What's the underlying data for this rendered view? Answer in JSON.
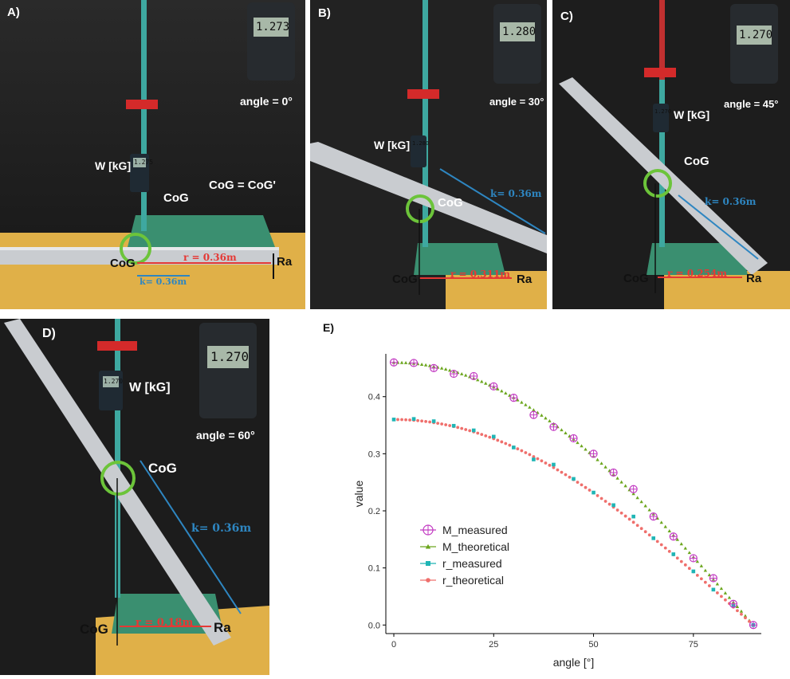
{
  "panels": {
    "a": {
      "label": "A)",
      "angle_text": "angle = 0°",
      "w_label": "W [kG]",
      "cog_label": "CoG",
      "cog_base_label": "CoG",
      "cog_eq": "CoG = CoG'",
      "r_label": "r = 0.36m",
      "k_label": "k= 0.36m",
      "ra_label": "Ra",
      "scale_reading": "1.273",
      "hook_reading": "1.275"
    },
    "b": {
      "label": "B)",
      "angle_text": "angle = 30°",
      "w_label": "W [kG]",
      "cog_label": "CoG",
      "cog_base_label": "CoG",
      "r_label": "r = 0.311m",
      "k_label": "k= 0.36m",
      "ra_label": "Ra",
      "scale_reading": "1.280",
      "hook_reading": "1.280"
    },
    "c": {
      "label": "C)",
      "angle_text": "angle = 45°",
      "w_label": "W [kG]",
      "cog_label": "CoG",
      "cog_base_label": "CoG",
      "r_label": "r = 0.254m",
      "k_label": "k= 0.36m",
      "ra_label": "Ra",
      "scale_reading": "1.270",
      "hook_reading": "1.270"
    },
    "d": {
      "label": "D)",
      "angle_text": "angle = 60°",
      "w_label": "W [kG]",
      "cog_label": "CoG",
      "cog_base_label": "CoG",
      "r_label": "r = 0.18m",
      "k_label": "k= 0.36m",
      "ra_label": "Ra",
      "scale_reading": "1.270",
      "hook_reading": "1.270"
    }
  },
  "chart_data": {
    "panel_label": "E)",
    "type": "scatter",
    "xlabel": "angle [°]",
    "ylabel": "value",
    "xlim": [
      -2,
      92
    ],
    "ylim": [
      -0.015,
      0.475
    ],
    "xticks": [
      0,
      25,
      50,
      75
    ],
    "yticks": [
      0.0,
      0.1,
      0.2,
      0.3,
      0.4
    ],
    "ytick_labels": [
      "0.0",
      "0.1",
      "0.2",
      "0.3",
      "0.4"
    ],
    "grid": false,
    "legend_position": "bottom-left",
    "series": [
      {
        "name": "M_measured",
        "marker": "circle-plus",
        "color": "#c23ac2",
        "x": [
          0,
          5,
          10,
          15,
          20,
          25,
          30,
          35,
          40,
          45,
          50,
          55,
          60,
          65,
          70,
          75,
          80,
          85,
          90
        ],
        "y": [
          0.46,
          0.459,
          0.45,
          0.44,
          0.436,
          0.418,
          0.398,
          0.368,
          0.347,
          0.327,
          0.3,
          0.267,
          0.238,
          0.19,
          0.155,
          0.117,
          0.082,
          0.037,
          0.0
        ]
      },
      {
        "name": "M_theoretical",
        "marker": "triangle",
        "color": "#6ca61e",
        "x": [
          0,
          1,
          2,
          3,
          4,
          5,
          6,
          7,
          8,
          9,
          10,
          11,
          12,
          13,
          14,
          15,
          16,
          17,
          18,
          19,
          20,
          21,
          22,
          23,
          24,
          25,
          26,
          27,
          28,
          29,
          30,
          31,
          32,
          33,
          34,
          35,
          36,
          37,
          38,
          39,
          40,
          41,
          42,
          43,
          44,
          45,
          46,
          47,
          48,
          49,
          50,
          51,
          52,
          53,
          54,
          55,
          56,
          57,
          58,
          59,
          60,
          61,
          62,
          63,
          64,
          65,
          66,
          67,
          68,
          69,
          70,
          71,
          72,
          73,
          74,
          75,
          76,
          77,
          78,
          79,
          80,
          81,
          82,
          83,
          84,
          85,
          86,
          87,
          88,
          89,
          90
        ],
        "y": [
          0.46,
          0.4599,
          0.4597,
          0.4594,
          0.4589,
          0.4582,
          0.4575,
          0.4566,
          0.4555,
          0.4543,
          0.453,
          0.4515,
          0.4499,
          0.4482,
          0.4463,
          0.4443,
          0.4422,
          0.4399,
          0.4375,
          0.4349,
          0.4323,
          0.4294,
          0.4265,
          0.4234,
          0.4202,
          0.4169,
          0.4134,
          0.4099,
          0.4062,
          0.4023,
          0.3984,
          0.3943,
          0.3901,
          0.3858,
          0.3814,
          0.3768,
          0.3721,
          0.3674,
          0.3625,
          0.3575,
          0.3524,
          0.3472,
          0.3418,
          0.3364,
          0.3309,
          0.3253,
          0.3195,
          0.3137,
          0.3078,
          0.3018,
          0.2957,
          0.2895,
          0.2832,
          0.2768,
          0.2704,
          0.2638,
          0.2572,
          0.2505,
          0.2438,
          0.2369,
          0.23,
          0.223,
          0.216,
          0.2088,
          0.2017,
          0.1944,
          0.1871,
          0.1797,
          0.1723,
          0.1648,
          0.1573,
          0.1498,
          0.1421,
          0.1345,
          0.1268,
          0.1191,
          0.1113,
          0.1035,
          0.0956,
          0.0878,
          0.0799,
          0.072,
          0.064,
          0.0561,
          0.0481,
          0.0401,
          0.0321,
          0.0241,
          0.0161,
          0.008,
          0.0
        ]
      },
      {
        "name": "r_measured",
        "marker": "square",
        "color": "#1fb5b5",
        "x": [
          0,
          5,
          10,
          15,
          20,
          25,
          30,
          35,
          40,
          45,
          50,
          55,
          60,
          65,
          70,
          75,
          80,
          85,
          90
        ],
        "y": [
          0.36,
          0.361,
          0.357,
          0.349,
          0.341,
          0.33,
          0.311,
          0.29,
          0.281,
          0.256,
          0.232,
          0.21,
          0.19,
          0.152,
          0.124,
          0.094,
          0.062,
          0.034,
          0.0
        ]
      },
      {
        "name": "r_theoretical",
        "marker": "circle",
        "color": "#ef6f6c",
        "x": [
          0,
          1,
          2,
          3,
          4,
          5,
          6,
          7,
          8,
          9,
          10,
          11,
          12,
          13,
          14,
          15,
          16,
          17,
          18,
          19,
          20,
          21,
          22,
          23,
          24,
          25,
          26,
          27,
          28,
          29,
          30,
          31,
          32,
          33,
          34,
          35,
          36,
          37,
          38,
          39,
          40,
          41,
          42,
          43,
          44,
          45,
          46,
          47,
          48,
          49,
          50,
          51,
          52,
          53,
          54,
          55,
          56,
          57,
          58,
          59,
          60,
          61,
          62,
          63,
          64,
          65,
          66,
          67,
          68,
          69,
          70,
          71,
          72,
          73,
          74,
          75,
          76,
          77,
          78,
          79,
          80,
          81,
          82,
          83,
          84,
          85,
          86,
          87,
          88,
          89,
          90
        ],
        "y": [
          0.36,
          0.3599,
          0.3598,
          0.3595,
          0.3591,
          0.3586,
          0.358,
          0.3573,
          0.3565,
          0.3556,
          0.3545,
          0.3534,
          0.3521,
          0.3508,
          0.3493,
          0.3477,
          0.3461,
          0.3443,
          0.3424,
          0.3404,
          0.3383,
          0.3361,
          0.3338,
          0.3314,
          0.3289,
          0.3263,
          0.3236,
          0.3208,
          0.3179,
          0.3149,
          0.3118,
          0.3086,
          0.3053,
          0.3019,
          0.2985,
          0.2949,
          0.2912,
          0.2875,
          0.2837,
          0.2798,
          0.2758,
          0.2717,
          0.2675,
          0.2633,
          0.259,
          0.2546,
          0.2501,
          0.2455,
          0.2409,
          0.2362,
          0.2314,
          0.2266,
          0.2216,
          0.2167,
          0.2116,
          0.2065,
          0.2013,
          0.1961,
          0.1908,
          0.1854,
          0.18,
          0.1745,
          0.169,
          0.1634,
          0.1578,
          0.1521,
          0.1464,
          0.1407,
          0.1349,
          0.129,
          0.1231,
          0.1172,
          0.1112,
          0.1053,
          0.0992,
          0.0932,
          0.0871,
          0.081,
          0.0748,
          0.0687,
          0.0625,
          0.0563,
          0.0501,
          0.0439,
          0.0377,
          0.0314,
          0.0251,
          0.0189,
          0.0126,
          0.0063,
          0.0
        ]
      }
    ]
  }
}
